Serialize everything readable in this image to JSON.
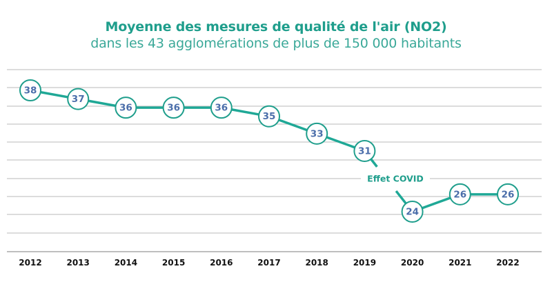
{
  "chart_data": {
    "type": "line",
    "title": "Moyenne des mesures de qualité de l'air (NO2)",
    "subtitle": "dans les 43 agglomérations de plus de 150 000 habitants",
    "xlabel": "",
    "ylabel": "",
    "categories": [
      "2012",
      "2013",
      "2014",
      "2015",
      "2016",
      "2017",
      "2018",
      "2019",
      "2020",
      "2021",
      "2022"
    ],
    "series": [
      {
        "name": "NO2",
        "values": [
          38,
          37,
          36,
          36,
          36,
          35,
          33,
          31,
          24,
          26,
          26
        ]
      }
    ],
    "data_labels": [
      "38",
      "37",
      "36",
      "36",
      "36",
      "35",
      "33",
      "31",
      "24",
      "26",
      "26"
    ],
    "ylim": [
      20,
      40
    ],
    "grid": true,
    "legend": "none",
    "annotations": [
      {
        "text": "Effet COVID",
        "between": [
          "2019",
          "2020"
        ]
      }
    ],
    "colors": {
      "line": "#1fa896",
      "marker_stroke": "#1f9e8c",
      "label": "#4b6eaa",
      "title": "#1f9e8c"
    }
  }
}
